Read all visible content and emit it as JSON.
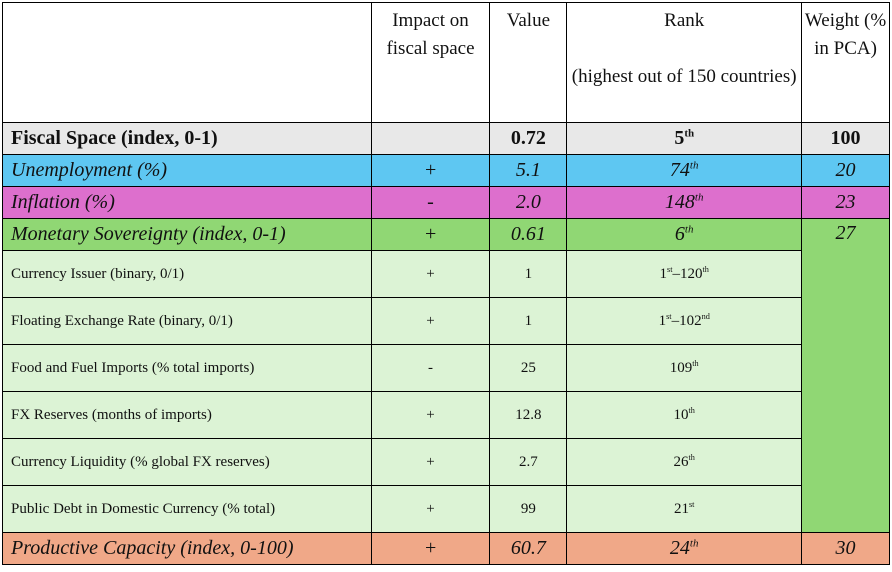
{
  "header": {
    "col1": "",
    "col2": "Impact on fiscal space",
    "col3": "Value",
    "col4_line1": "Rank",
    "col4_line2": "(highest out of 150 countries)",
    "col5": "Weight (% in PCA)"
  },
  "rows": [
    {
      "label": "Fiscal Space (index, 0-1)",
      "impact": "",
      "value": "0.72",
      "rank_num": "5",
      "rank_suf": "th",
      "weight": "100"
    },
    {
      "label": "Unemployment (%)",
      "impact": "+",
      "value": "5.1",
      "rank_num": "74",
      "rank_suf": "th",
      "weight": "20"
    },
    {
      "label": "Inflation (%)",
      "impact": "-",
      "value": "2.0",
      "rank_num": "148",
      "rank_suf": "th",
      "weight": "23"
    },
    {
      "label": "Monetary Sovereignty (index, 0-1)",
      "impact": "+",
      "value": "0.61",
      "rank_num": "6",
      "rank_suf": "th",
      "weight": "27"
    }
  ],
  "sub_rows": [
    {
      "label": "Currency Issuer (binary, 0/1)",
      "impact": "+",
      "value": "1",
      "rank_a": "1",
      "suf_a": "st",
      "rank_b": "120",
      "suf_b": "th"
    },
    {
      "label": "Floating Exchange Rate (binary, 0/1)",
      "impact": "+",
      "value": "1",
      "rank_a": "1",
      "suf_a": "st",
      "rank_b": "102",
      "suf_b": "nd"
    },
    {
      "label": "Food and Fuel Imports (% total imports)",
      "impact": "-",
      "value": "25",
      "rank_a": "109",
      "suf_a": "th"
    },
    {
      "label": "FX Reserves (months of imports)",
      "impact": "+",
      "value": "12.8",
      "rank_a": "10",
      "suf_a": "th"
    },
    {
      "label": "Currency Liquidity (% global FX reserves)",
      "impact": "+",
      "value": "2.7",
      "rank_a": "26",
      "suf_a": "th"
    },
    {
      "label": "Public Debt in Domestic Currency (% total)",
      "impact": "+",
      "value": "99",
      "rank_a": "21",
      "suf_a": "st"
    }
  ],
  "last_row": {
    "label": "Productive Capacity (index, 0-100)",
    "impact": "+",
    "value": "60.7",
    "rank_num": "24",
    "rank_suf": "th",
    "weight": "30"
  },
  "range_dash": "–",
  "colors": {
    "fiscal_space": "#e8e8e8",
    "unemployment": "#5ec7f2",
    "inflation": "#dd6fcd",
    "monetary_sovereignty": "#90d774",
    "sub_rows": "#dcf3d5",
    "productive_capacity": "#f0a888"
  }
}
